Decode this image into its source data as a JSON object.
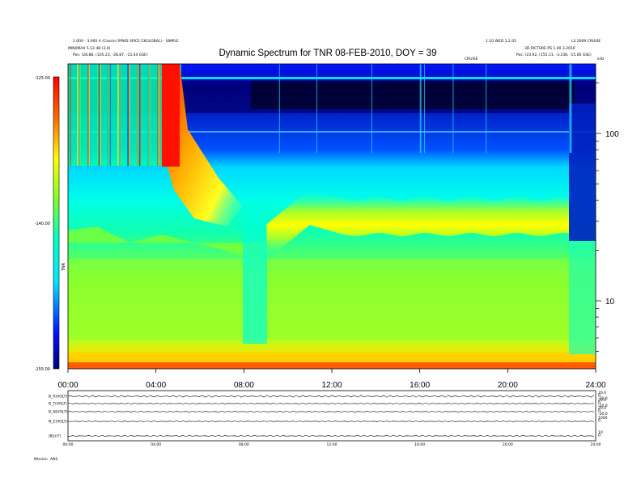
{
  "chart_data": {
    "type": "heatmap",
    "title": "Dynamic Spectrum for TNR 08-FEB-2010, DOY = 39",
    "header_left": [
      "1.000 - 3.000 A (Cassini RPWS SPICE CKGLOBAL) - SIMPLE",
      "MIN/IMAX 5.12 dB (3.0)",
      "Pos:  (28.88, (105.23, -28.87, -15.44 GSE)"
    ],
    "header_right": [
      "1.10 WED 3.2.05",
      "3D PICTURE PS 1.00 3.2010",
      "Pos:  (23.92, (155.11, -3.238, -15.06 GSE)"
    ],
    "header_right_code": "LS 2009 CRUISE",
    "header_center_small": "CRUISE",
    "y_right_unit": "kHz",
    "colorbar_label": "TNR",
    "colorbar_ticks": [
      "-125.00",
      "-140.00",
      "-155.00"
    ],
    "x_ticks": [
      "00:00",
      "04:00",
      "08:00",
      "12:00",
      "16:00",
      "20:00",
      "24:00"
    ],
    "y_right_ticks": [
      "100",
      "10"
    ],
    "band_features": [
      {
        "t_start": 0,
        "t_end": 9,
        "freq_level": "low",
        "note": "noisy band"
      },
      {
        "t_start": 9,
        "t_end": 22.8,
        "freq_level": "mid",
        "note": "emission line"
      }
    ],
    "xlim": [
      "00:00",
      "24:00"
    ]
  },
  "panels": {
    "labels": [
      "B_R(VOLT)",
      "B_T(VOLT)",
      "B_N(VOLT)",
      "N_E(VOLT)",
      "|B|(nT)"
    ],
    "right_values": [
      [
        "20.0",
        "0",
        "-20.0"
      ],
      [
        "20.0",
        "0",
        "-20.0"
      ],
      [
        "20.0",
        "0",
        "-20.0"
      ],
      [
        "1000",
        "0"
      ],
      [
        "10",
        "0"
      ]
    ],
    "x_ticks": [
      "00:00",
      "04:00",
      "08:00",
      "12:00",
      "16:00",
      "20:00",
      "24:00"
    ]
  },
  "footer": {
    "label_a": "Mission",
    "label_b": "ANS"
  },
  "colors": {
    "frame": "#000000",
    "background": "#ffffff"
  }
}
